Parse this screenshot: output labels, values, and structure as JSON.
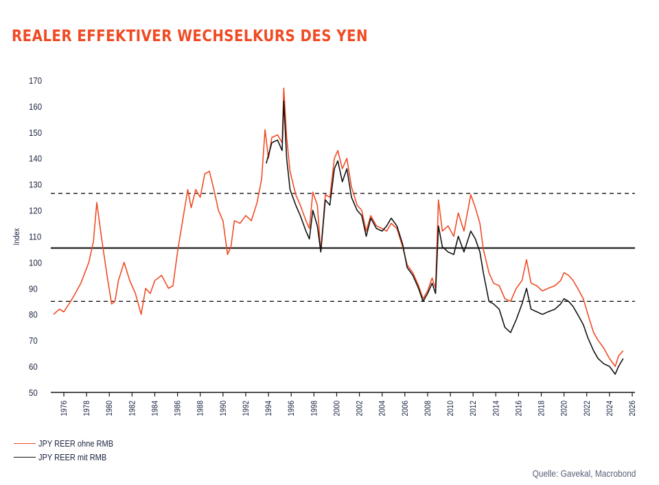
{
  "colors": {
    "title": "#f04a23",
    "series_ohne": "#f04a23",
    "series_mit": "#111111",
    "axis": "#111111"
  },
  "chart_data": {
    "type": "line",
    "title": "REALER EFFEKTIVER WECHSELKURS DES YEN",
    "xlabel": "",
    "ylabel": "Index",
    "xlim": [
      1975,
      2026
    ],
    "ylim": [
      50,
      170
    ],
    "yticks": [
      50,
      60,
      70,
      80,
      90,
      100,
      110,
      120,
      130,
      140,
      150,
      160,
      170
    ],
    "ytick_labels": [
      "50",
      "60",
      "70",
      "80",
      "90",
      "100",
      "110",
      "120",
      "130",
      "140",
      "150",
      "160",
      "170"
    ],
    "xticks": [
      1976,
      1978,
      1980,
      1982,
      1984,
      1986,
      1988,
      1990,
      1992,
      1994,
      1996,
      1998,
      2000,
      2002,
      2004,
      2006,
      2008,
      2010,
      2012,
      2014,
      2016,
      2018,
      2020,
      2022,
      2024,
      2026
    ],
    "xtick_labels": [
      "1976",
      "1978",
      "1980",
      "1982",
      "1984",
      "1986",
      "1988",
      "1990",
      "1992",
      "1994",
      "1996",
      "1998",
      "2000",
      "2002",
      "2004",
      "2006",
      "2008",
      "2010",
      "2012",
      "2014",
      "2016",
      "2018",
      "2020",
      "2022",
      "2024",
      "2026"
    ],
    "grid": false,
    "legend_position": "bottom-left",
    "reference_lines": [
      {
        "value": 126.5,
        "style": "dashed"
      },
      {
        "value": 105.5,
        "style": "solid"
      },
      {
        "value": 85,
        "style": "dashed"
      }
    ],
    "series": [
      {
        "name": "JPY REER ohne RMB",
        "color": "#f04a23",
        "x": [
          1975.1,
          1975.6,
          1976.0,
          1976.6,
          1977.0,
          1977.5,
          1978.2,
          1978.6,
          1978.9,
          1979.3,
          1979.8,
          1980.2,
          1980.5,
          1980.8,
          1981.3,
          1981.8,
          1982.3,
          1982.8,
          1983.2,
          1983.6,
          1984.0,
          1984.6,
          1985.2,
          1985.6,
          1986.0,
          1986.6,
          1986.9,
          1987.2,
          1987.6,
          1988.0,
          1988.4,
          1988.8,
          1989.2,
          1989.6,
          1990.0,
          1990.4,
          1990.7,
          1991.0,
          1991.5,
          1992.0,
          1992.5,
          1993.0,
          1993.4,
          1993.7,
          1994.0,
          1994.3,
          1994.8,
          1995.2,
          1995.35,
          1995.6,
          1995.9,
          1996.4,
          1996.8,
          1997.3,
          1997.6,
          1997.9,
          1998.3,
          1998.6,
          1999.0,
          1999.4,
          1999.8,
          2000.1,
          2000.5,
          2000.9,
          2001.3,
          2001.8,
          2002.2,
          2002.6,
          2003.0,
          2003.5,
          2004.0,
          2004.4,
          2004.8,
          2005.3,
          2005.8,
          2006.2,
          2006.7,
          2007.2,
          2007.6,
          2008.0,
          2008.4,
          2008.7,
          2008.95,
          2009.3,
          2009.8,
          2010.3,
          2010.7,
          2011.2,
          2011.8,
          2012.2,
          2012.6,
          2012.9,
          2013.4,
          2013.8,
          2014.3,
          2014.8,
          2015.3,
          2015.8,
          2016.3,
          2016.7,
          2017.1,
          2017.6,
          2018.1,
          2018.6,
          2019.2,
          2019.7,
          2020.0,
          2020.4,
          2020.8,
          2021.2,
          2021.7,
          2022.1,
          2022.6,
          2023.0,
          2023.5,
          2024.0,
          2024.5,
          2024.8,
          2025.2
        ],
        "values": [
          80,
          82,
          81,
          85,
          88,
          92,
          100,
          108,
          123,
          110,
          95,
          84,
          85,
          93,
          100,
          93,
          88,
          80,
          90,
          88,
          93,
          95,
          90,
          91,
          104,
          120,
          128,
          121,
          128,
          125,
          134,
          135,
          128,
          120,
          116,
          103,
          106,
          116,
          115,
          118,
          116,
          123,
          132,
          151,
          140,
          148,
          149,
          146,
          167,
          148,
          135,
          126,
          122,
          116,
          113,
          127,
          122,
          104,
          126,
          125,
          140,
          143,
          136,
          140,
          129,
          122,
          120,
          112,
          118,
          114,
          113,
          112,
          115,
          113,
          106,
          99,
          96,
          91,
          86,
          89,
          94,
          90,
          124,
          112,
          114,
          110,
          119,
          112,
          126,
          121,
          115,
          105,
          96,
          92,
          91,
          86,
          85,
          90,
          93,
          101,
          92,
          91,
          89,
          90,
          91,
          93,
          96,
          95,
          93,
          90,
          86,
          80,
          73,
          70,
          67,
          63,
          60,
          64,
          66
        ]
      },
      {
        "name": "JPY REER mit RMB",
        "color": "#111111",
        "x": [
          1993.8,
          1994.3,
          1994.8,
          1995.2,
          1995.35,
          1995.6,
          1995.9,
          1996.4,
          1996.8,
          1997.3,
          1997.6,
          1997.9,
          1998.3,
          1998.6,
          1999.0,
          1999.4,
          1999.8,
          2000.1,
          2000.5,
          2000.9,
          2001.3,
          2001.8,
          2002.2,
          2002.6,
          2003.0,
          2003.5,
          2004.0,
          2004.4,
          2004.8,
          2005.3,
          2005.8,
          2006.2,
          2006.7,
          2007.2,
          2007.6,
          2008.0,
          2008.4,
          2008.7,
          2008.95,
          2009.3,
          2009.8,
          2010.3,
          2010.7,
          2011.2,
          2011.8,
          2012.2,
          2012.6,
          2012.9,
          2013.4,
          2013.8,
          2014.3,
          2014.8,
          2015.3,
          2015.8,
          2016.3,
          2016.7,
          2017.1,
          2017.6,
          2018.1,
          2018.6,
          2019.2,
          2019.7,
          2020.0,
          2020.4,
          2020.8,
          2021.2,
          2021.7,
          2022.1,
          2022.6,
          2023.0,
          2023.5,
          2024.0,
          2024.5,
          2024.8,
          2025.2
        ],
        "values": [
          138,
          146,
          147,
          143,
          162,
          140,
          128,
          122,
          118,
          112,
          109,
          120,
          114,
          104,
          124,
          122,
          136,
          139,
          131,
          136,
          125,
          120,
          118,
          110,
          117,
          113,
          112,
          114,
          117,
          114,
          107,
          98,
          95,
          90,
          85,
          88,
          92,
          88,
          114,
          106,
          104,
          103,
          110,
          104,
          112,
          109,
          104,
          96,
          85,
          84,
          82,
          75,
          73,
          78,
          84,
          90,
          82,
          81,
          80,
          81,
          82,
          84,
          86,
          85,
          83,
          80,
          76,
          71,
          66,
          63,
          61,
          60,
          57,
          60,
          63
        ]
      }
    ]
  },
  "legend": {
    "items": [
      "JPY REER ohne RMB",
      "JPY REER mit RMB"
    ]
  },
  "source": "Quelle: Gavekal, Macrobond"
}
